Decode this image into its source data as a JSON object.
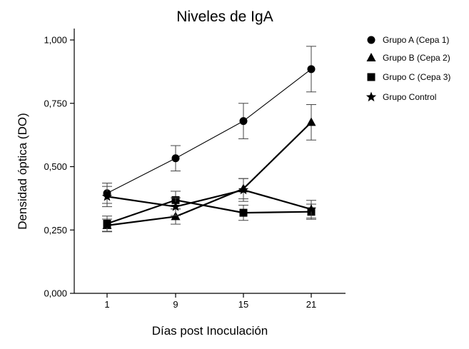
{
  "chart_data": {
    "type": "line",
    "title": "Niveles de IgA",
    "xlabel": "Días post Inoculación",
    "ylabel": "Densidad óptica (DO)",
    "x": [
      1,
      9,
      15,
      21
    ],
    "x_tick_labels": [
      "1",
      "9",
      "15",
      "21"
    ],
    "ylim": [
      0,
      1.0
    ],
    "y_ticks": [
      0,
      0.25,
      0.5,
      0.75,
      1.0
    ],
    "y_tick_labels": [
      "0,000",
      "0,250",
      "0,500",
      "0,750",
      "1,000"
    ],
    "grid": false,
    "legend_position": "right",
    "series": [
      {
        "name": "Grupo A (Cepa 1)",
        "marker": "circle",
        "values": [
          0.395,
          0.533,
          0.68,
          0.885
        ],
        "errors": [
          0.04,
          0.05,
          0.07,
          0.09
        ],
        "line": "thin"
      },
      {
        "name": "Grupo B (Cepa 2)",
        "marker": "triangle",
        "values": [
          0.268,
          0.303,
          0.413,
          0.675
        ],
        "errors": [
          0.025,
          0.03,
          0.04,
          0.07
        ],
        "line": "thick"
      },
      {
        "name": "Grupo C (Cepa 3)",
        "marker": "square",
        "values": [
          0.275,
          0.368,
          0.318,
          0.322
        ],
        "errors": [
          0.03,
          0.035,
          0.03,
          0.03
        ],
        "line": "thick"
      },
      {
        "name": "Grupo Control",
        "marker": "star",
        "values": [
          0.382,
          0.342,
          0.408,
          0.332
        ],
        "errors": [
          0.04,
          0.035,
          0.045,
          0.035
        ],
        "line": "thick"
      }
    ]
  }
}
